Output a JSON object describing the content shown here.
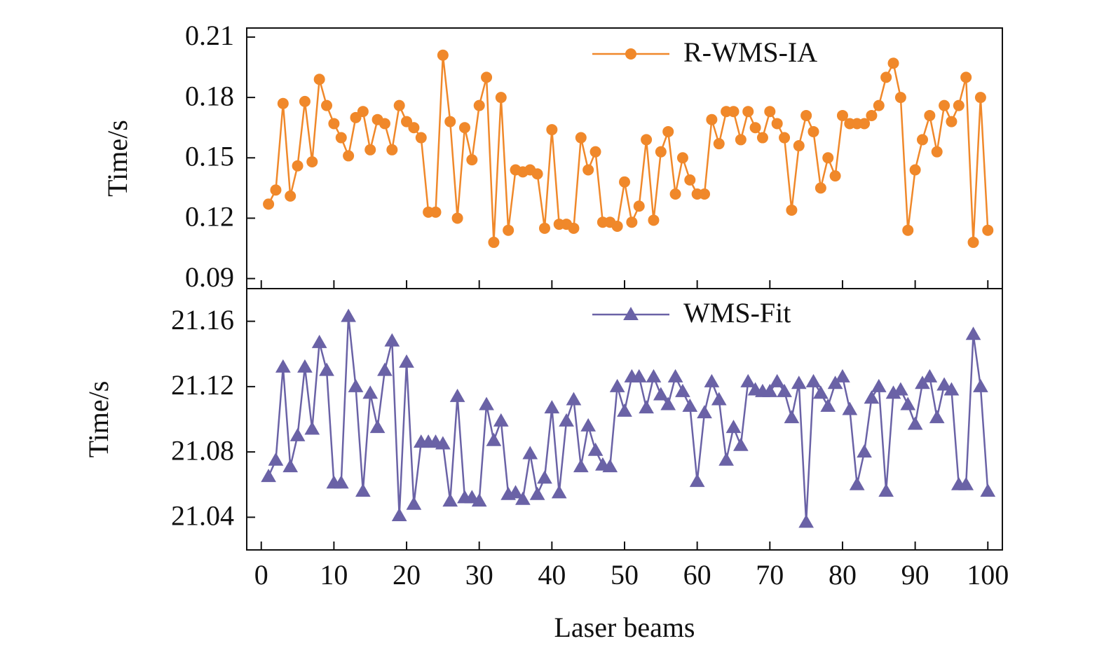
{
  "chart_data": [
    {
      "type": "line",
      "ylabel": "Time/s",
      "legend": "top",
      "x": [
        1,
        2,
        3,
        4,
        5,
        6,
        7,
        8,
        9,
        10,
        11,
        12,
        13,
        14,
        15,
        16,
        17,
        18,
        19,
        20,
        21,
        22,
        23,
        24,
        25,
        26,
        27,
        28,
        29,
        30,
        31,
        32,
        33,
        34,
        35,
        36,
        37,
        38,
        39,
        40,
        41,
        42,
        43,
        44,
        45,
        46,
        47,
        48,
        49,
        50,
        51,
        52,
        53,
        54,
        55,
        56,
        57,
        58,
        59,
        60,
        61,
        62,
        63,
        64,
        65,
        66,
        67,
        68,
        69,
        70,
        71,
        72,
        73,
        74,
        75,
        76,
        77,
        78,
        79,
        80,
        81,
        82,
        83,
        84,
        85,
        86,
        87,
        88,
        89,
        90,
        91,
        92,
        93,
        94,
        95,
        96,
        97,
        98,
        99,
        100
      ],
      "xlim": [
        -2,
        102
      ],
      "ylim": [
        0.085,
        0.2145
      ],
      "yticks": [
        0.09,
        0.12,
        0.15,
        0.18,
        0.21
      ],
      "series": [
        {
          "name": "R-WMS-IA",
          "color": "#f0882a",
          "marker": "circle",
          "values": [
            0.127,
            0.134,
            0.177,
            0.131,
            0.146,
            0.178,
            0.148,
            0.189,
            0.176,
            0.167,
            0.16,
            0.151,
            0.17,
            0.173,
            0.154,
            0.169,
            0.167,
            0.154,
            0.176,
            0.168,
            0.165,
            0.16,
            0.123,
            0.123,
            0.201,
            0.168,
            0.12,
            0.165,
            0.149,
            0.176,
            0.19,
            0.108,
            0.18,
            0.114,
            0.144,
            0.143,
            0.144,
            0.142,
            0.115,
            0.164,
            0.117,
            0.117,
            0.115,
            0.16,
            0.144,
            0.153,
            0.118,
            0.118,
            0.116,
            0.138,
            0.118,
            0.126,
            0.159,
            0.119,
            0.153,
            0.163,
            0.132,
            0.15,
            0.139,
            0.132,
            0.132,
            0.169,
            0.157,
            0.173,
            0.173,
            0.159,
            0.173,
            0.165,
            0.16,
            0.173,
            0.167,
            0.16,
            0.124,
            0.156,
            0.171,
            0.163,
            0.135,
            0.15,
            0.141,
            0.171,
            0.167,
            0.167,
            0.167,
            0.171,
            0.176,
            0.19,
            0.197,
            0.18,
            0.114,
            0.144,
            0.159,
            0.171,
            0.153,
            0.176,
            0.168,
            0.176,
            0.19,
            0.108,
            0.18,
            0.114
          ]
        }
      ]
    },
    {
      "type": "line",
      "ylabel": "Time/s",
      "xlabel": "Laser beams",
      "legend": "top",
      "x": [
        1,
        2,
        3,
        4,
        5,
        6,
        7,
        8,
        9,
        10,
        11,
        12,
        13,
        14,
        15,
        16,
        17,
        18,
        19,
        20,
        21,
        22,
        23,
        24,
        25,
        26,
        27,
        28,
        29,
        30,
        31,
        32,
        33,
        34,
        35,
        36,
        37,
        38,
        39,
        40,
        41,
        42,
        43,
        44,
        45,
        46,
        47,
        48,
        49,
        50,
        51,
        52,
        53,
        54,
        55,
        56,
        57,
        58,
        59,
        60,
        61,
        62,
        63,
        64,
        65,
        66,
        67,
        68,
        69,
        70,
        71,
        72,
        73,
        74,
        75,
        76,
        77,
        78,
        79,
        80,
        81,
        82,
        83,
        84,
        85,
        86,
        87,
        88,
        89,
        90,
        91,
        92,
        93,
        94,
        95,
        96,
        97,
        98,
        99,
        100
      ],
      "xlim": [
        -2,
        102
      ],
      "xticks": [
        0,
        10,
        20,
        30,
        40,
        50,
        60,
        70,
        80,
        90,
        100
      ],
      "ylim": [
        21.02,
        21.18
      ],
      "yticks": [
        21.04,
        21.08,
        21.12,
        21.16
      ],
      "series": [
        {
          "name": "WMS-Fit",
          "color": "#6a62a6",
          "marker": "triangle",
          "values": [
            21.065,
            21.075,
            21.132,
            21.071,
            21.09,
            21.132,
            21.094,
            21.147,
            21.13,
            21.061,
            21.061,
            21.163,
            21.12,
            21.056,
            21.116,
            21.095,
            21.13,
            21.148,
            21.041,
            21.135,
            21.048,
            21.086,
            21.086,
            21.086,
            21.085,
            21.05,
            21.114,
            21.052,
            21.052,
            21.05,
            21.109,
            21.087,
            21.099,
            21.054,
            21.055,
            21.051,
            21.079,
            21.054,
            21.064,
            21.107,
            21.055,
            21.099,
            21.112,
            21.071,
            21.096,
            21.081,
            21.072,
            21.071,
            21.12,
            21.105,
            21.126,
            21.126,
            21.107,
            21.126,
            21.115,
            21.109,
            21.126,
            21.117,
            21.108,
            21.062,
            21.104,
            21.123,
            21.112,
            21.075,
            21.095,
            21.084,
            21.123,
            21.118,
            21.117,
            21.117,
            21.123,
            21.117,
            21.101,
            21.122,
            21.037,
            21.123,
            21.116,
            21.108,
            21.122,
            21.126,
            21.106,
            21.06,
            21.08,
            21.113,
            21.12,
            21.056,
            21.116,
            21.118,
            21.109,
            21.097,
            21.122,
            21.126,
            21.101,
            21.121,
            21.118,
            21.06,
            21.06,
            21.152,
            21.12,
            21.056
          ]
        }
      ]
    }
  ]
}
